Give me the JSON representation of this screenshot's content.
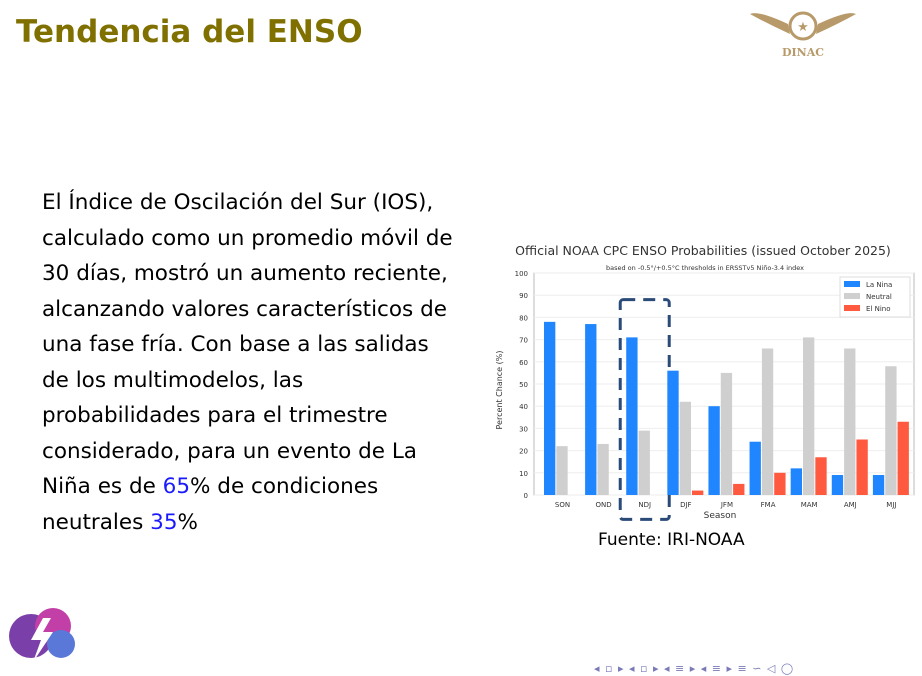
{
  "slide": {
    "title": "Tendencia del ENSO",
    "text_parts": [
      "El Índice de Oscilación del Sur (IOS), calculado como un promedio móvil de 30 días, mostró un aumento reciente, alcanzando valores característicos de una fase fría. Con base a las salidas de los multimodelos, las probabilidades para el trimestre considerado, para un evento de La Niña es de ",
      "65",
      "% de condiciones neutrales ",
      "35",
      "%"
    ],
    "source": "Fuente: IRI-NOAA",
    "logo_text": "DINAC",
    "nav_symbols": "◂ ▫ ▸ ◂ ▫ ▸ ◂ ≡ ▸ ◂ ≡ ▸ ≡ ∽ ◁ ◯"
  },
  "colors": {
    "la_nina": "#1f86ff",
    "neutral": "#cfcfcf",
    "el_nino": "#ff5a40",
    "title": "#807000",
    "highlight": "#1a1aff"
  },
  "chart_data": {
    "type": "bar",
    "title": "Official NOAA CPC ENSO Probabilities (issued October 2025)",
    "subtitle": "based on -0.5°/+0.5°C thresholds in ERSSTv5 Niño-3.4 index",
    "xlabel": "Season",
    "ylabel": "Percent Chance (%)",
    "ylim": [
      0,
      100
    ],
    "yticks": [
      0,
      10,
      20,
      30,
      40,
      50,
      60,
      70,
      80,
      90,
      100
    ],
    "grid": true,
    "legend": "top-right",
    "categories": [
      "SON",
      "OND",
      "NDJ",
      "DJF",
      "JFM",
      "FMA",
      "MAM",
      "AMJ",
      "MJJ"
    ],
    "highlighted_category": "NDJ",
    "series": [
      {
        "name": "La Nina",
        "values": [
          78,
          77,
          71,
          56,
          40,
          24,
          12,
          9,
          9
        ]
      },
      {
        "name": "Neutral",
        "values": [
          22,
          23,
          29,
          42,
          55,
          66,
          71,
          66,
          58
        ]
      },
      {
        "name": "El Nino",
        "values": [
          0,
          0,
          0,
          2,
          5,
          10,
          17,
          25,
          33
        ]
      }
    ]
  }
}
